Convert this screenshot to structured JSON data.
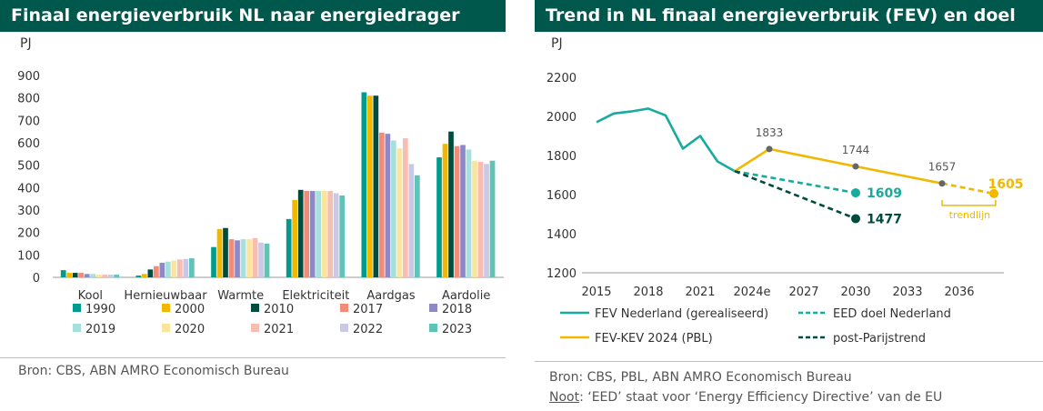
{
  "left": {
    "title": "Finaal energieverbruik NL naar energiedrager",
    "source": "Bron: CBS, ABN AMRO Economisch Bureau"
  },
  "right": {
    "title": "Trend in NL finaal energieverbruik (FEV) en doel",
    "source": "Bron: CBS, PBL, ABN AMRO Economisch Bureau",
    "note_label": "Noot",
    "note_text": ": ‘EED’ staat voor ‘Energy Efficiency Directive’ van de EU"
  },
  "chart_data": [
    {
      "type": "bar",
      "title": "Finaal energieverbruik NL naar energiedrager",
      "ylabel": "PJ",
      "ylim": [
        0,
        900
      ],
      "yticks": [
        0,
        100,
        200,
        300,
        400,
        500,
        600,
        700,
        800,
        900
      ],
      "categories": [
        "Kool",
        "Hernieuwbaar",
        "Warmte",
        "Elektriciteit",
        "Aardgas",
        "Aardolie"
      ],
      "legend_position": "bottom",
      "grid": false,
      "series": [
        {
          "name": "1990",
          "color": "#009b8e",
          "values": [
            32,
            8,
            135,
            260,
            825,
            535
          ]
        },
        {
          "name": "2000",
          "color": "#f2b800",
          "values": [
            20,
            15,
            215,
            345,
            810,
            595
          ]
        },
        {
          "name": "2010",
          "color": "#004c3f",
          "values": [
            20,
            35,
            220,
            390,
            810,
            650
          ]
        },
        {
          "name": "2017",
          "color": "#f28b78",
          "values": [
            20,
            50,
            170,
            385,
            645,
            585
          ]
        },
        {
          "name": "2018",
          "color": "#8e88c8",
          "values": [
            15,
            65,
            165,
            385,
            640,
            590
          ]
        },
        {
          "name": "2019",
          "color": "#a6e0dc",
          "values": [
            15,
            70,
            170,
            385,
            610,
            570
          ]
        },
        {
          "name": "2020",
          "color": "#fbe49c",
          "values": [
            12,
            75,
            170,
            385,
            575,
            520
          ]
        },
        {
          "name": "2021",
          "color": "#f8bdb1",
          "values": [
            12,
            80,
            175,
            385,
            620,
            515
          ]
        },
        {
          "name": "2022",
          "color": "#cbc8e6",
          "values": [
            12,
            82,
            155,
            375,
            505,
            505
          ]
        },
        {
          "name": "2023",
          "color": "#5fc4b6",
          "values": [
            12,
            85,
            150,
            365,
            455,
            520
          ]
        }
      ]
    },
    {
      "type": "line",
      "title": "Trend in NL finaal energieverbruik (FEV) en doel",
      "ylabel": "PJ",
      "ylim": [
        1200,
        2200
      ],
      "yticks": [
        1200,
        1400,
        1600,
        1800,
        2000,
        2200
      ],
      "xlim": [
        2015,
        2038
      ],
      "xticks": [
        2015,
        2018,
        2021,
        2024,
        2027,
        2030,
        2033,
        2036
      ],
      "xtick_labels": [
        "2015",
        "2018",
        "2021",
        "2024e",
        "2027",
        "2030",
        "2033",
        "2036"
      ],
      "legend_position": "bottom",
      "grid": false,
      "series": [
        {
          "name": "FEV Nederland (gerealiseerd)",
          "color": "#16ab9c",
          "style": "solid",
          "x": [
            2015,
            2016,
            2017,
            2018,
            2019,
            2020,
            2021,
            2022,
            2023
          ],
          "y": [
            1970,
            2015,
            2025,
            2040,
            2005,
            1835,
            1900,
            1770,
            1720
          ]
        },
        {
          "name": "EED doel Nederland",
          "color": "#16ab9c",
          "style": "dashed",
          "x": [
            2023,
            2030
          ],
          "y": [
            1720,
            1609
          ]
        },
        {
          "name": "FEV-KEV 2024 (PBL)",
          "color": "#f2b800",
          "style": "solid",
          "x": [
            2023,
            2025,
            2030,
            2035
          ],
          "y": [
            1720,
            1833,
            1744,
            1657
          ]
        },
        {
          "name": "post-Parijstrend",
          "color": "#004c3f",
          "style": "dashed",
          "x": [
            2023,
            2030
          ],
          "y": [
            1720,
            1477
          ]
        },
        {
          "name": "",
          "color": "#f2b800",
          "style": "dashed",
          "x": [
            2035,
            2038
          ],
          "y": [
            1657,
            1605
          ]
        }
      ],
      "annotations": [
        {
          "text": "1833",
          "x": 2025,
          "y": 1833,
          "color": "#555555"
        },
        {
          "text": "1744",
          "x": 2030,
          "y": 1744,
          "color": "#555555"
        },
        {
          "text": "1657",
          "x": 2035,
          "y": 1657,
          "color": "#555555"
        },
        {
          "text": "1605",
          "x": 2038,
          "y": 1605,
          "color": "#f2b800"
        },
        {
          "text": "1609",
          "x": 2030,
          "y": 1609,
          "color": "#16ab9c"
        },
        {
          "text": "1477",
          "x": 2030,
          "y": 1477,
          "color": "#004c3f"
        },
        {
          "text": "trendlijn",
          "x": 2036.6,
          "y": 1480,
          "color": "#f2b800"
        }
      ]
    }
  ]
}
